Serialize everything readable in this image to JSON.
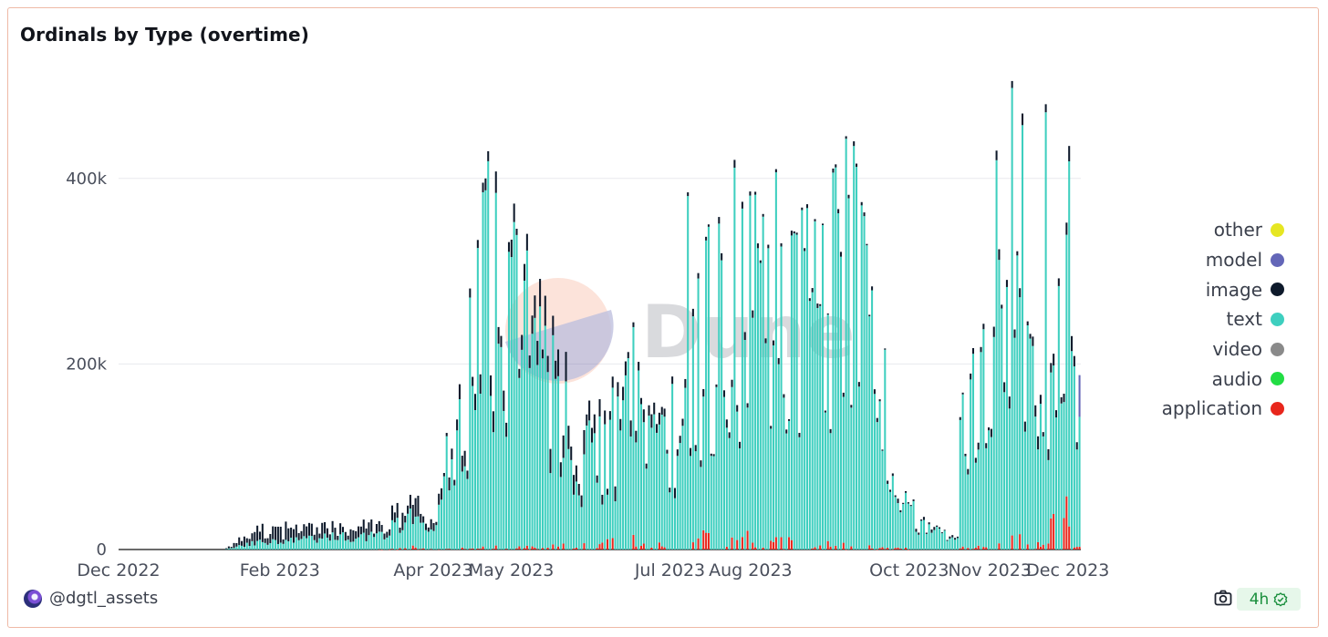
{
  "title": "Ordinals by Type (overtime)",
  "footer": {
    "handle": "@dgtl_assets",
    "refresh_badge": "4h"
  },
  "watermark": {
    "text": "Dune"
  },
  "chart_data": {
    "type": "bar",
    "stacked": true,
    "y_ticks": [
      "0",
      "200k",
      "400k"
    ],
    "x_ticks": [
      "Dec 2022",
      "Feb 2023",
      "Apr 2023",
      "May 2023",
      "Jul 2023",
      "Aug 2023",
      "Oct 2023",
      "Nov 2023",
      "Dec 2023"
    ],
    "x_tick_dates": [
      "2022-12-01",
      "2023-02-01",
      "2023-04-01",
      "2023-05-01",
      "2023-07-01",
      "2023-08-01",
      "2023-10-01",
      "2023-11-01",
      "2023-12-01"
    ],
    "ylim": [
      0,
      500000
    ],
    "grid": true,
    "legend_position": "right",
    "series": [
      {
        "name": "other",
        "color": "#e6e622"
      },
      {
        "name": "model",
        "color": "#6366b8"
      },
      {
        "name": "image",
        "color": "#0e1a2b"
      },
      {
        "name": "text",
        "color": "#3ecfbf"
      },
      {
        "name": "video",
        "color": "#8a8a8a"
      },
      {
        "name": "audio",
        "color": "#22dd44"
      },
      {
        "name": "application",
        "color": "#e8261c"
      }
    ],
    "period": {
      "start": "2022-12-01",
      "end": "2023-12-06",
      "interval": "day"
    },
    "keypoints": [
      {
        "date": "2022-12-01",
        "text": 0,
        "image": 0,
        "application": 0
      },
      {
        "date": "2023-01-10",
        "text": 0,
        "image": 0,
        "application": 0
      },
      {
        "date": "2023-01-14",
        "text": 2000,
        "image": 3000,
        "application": 0
      },
      {
        "date": "2023-01-22",
        "text": 8000,
        "image": 12000,
        "application": 0
      },
      {
        "date": "2023-02-15",
        "text": 12000,
        "image": 10000,
        "application": 0
      },
      {
        "date": "2023-03-10",
        "text": 15000,
        "image": 8000,
        "application": 0
      },
      {
        "date": "2023-03-24",
        "text": 35000,
        "image": 15000,
        "application": 2000
      },
      {
        "date": "2023-04-01",
        "text": 15000,
        "image": 6000,
        "application": 0
      },
      {
        "date": "2023-04-12",
        "text": 170000,
        "image": 10000,
        "application": 1000
      },
      {
        "date": "2023-04-23",
        "text": 350000,
        "image": 15000,
        "application": 2000
      },
      {
        "date": "2023-05-05",
        "text": 270000,
        "image": 10000,
        "application": 2000
      },
      {
        "date": "2023-05-20",
        "text": 150000,
        "image": 25000,
        "application": 3000
      },
      {
        "date": "2023-06-05",
        "text": 110000,
        "image": 10000,
        "application": 5000
      },
      {
        "date": "2023-06-15",
        "text": 180000,
        "image": 10000,
        "application": 8000
      },
      {
        "date": "2023-06-30",
        "text": 130000,
        "image": 8000,
        "application": 5000
      },
      {
        "date": "2023-07-15",
        "text": 260000,
        "image": 5000,
        "application": 12000
      },
      {
        "date": "2023-08-01",
        "text": 300000,
        "image": 5000,
        "application": 10000
      },
      {
        "date": "2023-08-25",
        "text": 300000,
        "image": 3000,
        "application": 5000
      },
      {
        "date": "2023-09-10",
        "text": 360000,
        "image": 3000,
        "application": 3000
      },
      {
        "date": "2023-09-20",
        "text": 250000,
        "image": 3000,
        "application": 2000
      },
      {
        "date": "2023-09-25",
        "text": 80000,
        "image": 3000,
        "application": 2000
      },
      {
        "date": "2023-10-05",
        "text": 25000,
        "image": 2000,
        "application": 0
      },
      {
        "date": "2023-10-20",
        "text": 12000,
        "image": 2000,
        "application": 0
      },
      {
        "date": "2023-10-22",
        "text": 180000,
        "image": 3000,
        "application": 2000
      },
      {
        "date": "2023-11-01",
        "text": 240000,
        "image": 5000,
        "application": 3000
      },
      {
        "date": "2023-11-06",
        "text": 350000,
        "image": 8000,
        "application": 10000
      },
      {
        "date": "2023-11-15",
        "text": 260000,
        "image": 10000,
        "application": 8000
      },
      {
        "date": "2023-11-22",
        "text": 120000,
        "image": 8000,
        "application": 3000
      },
      {
        "date": "2023-11-30",
        "text": 300000,
        "image": 10000,
        "application": 40000
      },
      {
        "date": "2023-12-06",
        "text": 100000,
        "image": 8000,
        "application": 3000
      }
    ],
    "spikes": [
      {
        "date": "2023-04-21",
        "total": 400000
      },
      {
        "date": "2023-07-08",
        "total": 385000
      },
      {
        "date": "2023-07-26",
        "total": 420000
      },
      {
        "date": "2023-08-11",
        "total": 410000
      },
      {
        "date": "2023-09-10",
        "total": 440000
      },
      {
        "date": "2023-11-04",
        "total": 430000
      },
      {
        "date": "2023-11-10",
        "total": 505000
      },
      {
        "date": "2023-11-14",
        "total": 470000
      },
      {
        "date": "2023-11-23",
        "total": 480000
      },
      {
        "date": "2023-12-02",
        "total": 435000
      }
    ],
    "last_bar": {
      "date": "2023-12-06",
      "text": 140000,
      "model": 45000
    }
  }
}
